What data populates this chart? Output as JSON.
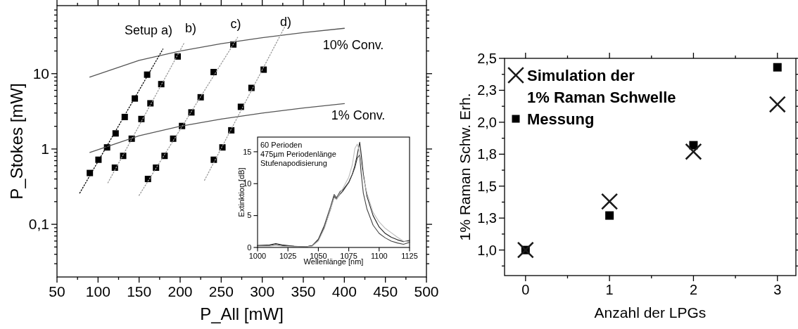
{
  "chart_data": [
    {
      "type": "scatter",
      "xlabel": "P_All [mW]",
      "ylabel": "P_Stokes [mW]",
      "log": true,
      "xlim": [
        50,
        500
      ],
      "ylim": [
        0.02,
        80
      ],
      "xticks": [
        50,
        100,
        150,
        200,
        250,
        300,
        350,
        400,
        450,
        500,
        {
          "value": 75,
          "label": null
        },
        {
          "value": 125,
          "label": null
        },
        {
          "value": 175,
          "label": null
        },
        {
          "value": 225,
          "label": null
        },
        {
          "value": 275,
          "label": null
        },
        {
          "value": 325,
          "label": null
        },
        {
          "value": 375,
          "label": null
        },
        {
          "value": 425,
          "label": null
        },
        {
          "value": 475,
          "label": null
        }
      ],
      "yticks": [
        {
          "value": 0.1,
          "label": "0,1"
        },
        1,
        10,
        {
          "value": 0.03,
          "label": null
        },
        {
          "value": 0.04,
          "label": null
        },
        {
          "value": 0.05,
          "label": null
        },
        {
          "value": 0.06,
          "label": null
        },
        {
          "value": 0.07,
          "label": null
        },
        {
          "value": 0.08,
          "label": null
        },
        {
          "value": 0.09,
          "label": null
        },
        {
          "value": 0.2,
          "label": null
        },
        {
          "value": 0.3,
          "label": null
        },
        {
          "value": 0.4,
          "label": null
        },
        {
          "value": 0.5,
          "label": null
        },
        {
          "value": 0.6,
          "label": null
        },
        {
          "value": 0.7,
          "label": null
        },
        {
          "value": 0.8,
          "label": null
        },
        {
          "value": 0.9,
          "label": null
        },
        {
          "value": 2,
          "label": null
        },
        {
          "value": 3,
          "label": null
        },
        {
          "value": 4,
          "label": null
        },
        {
          "value": 5,
          "label": null
        },
        {
          "value": 6,
          "label": null
        },
        {
          "value": 7,
          "label": null
        },
        {
          "value": 8,
          "label": null
        },
        {
          "value": 9,
          "label": null
        },
        {
          "value": 20,
          "label": null
        },
        {
          "value": 30,
          "label": null
        },
        {
          "value": 40,
          "label": null
        },
        {
          "value": 50,
          "label": null
        },
        {
          "value": 60,
          "label": null
        },
        {
          "value": 70,
          "label": null
        }
      ],
      "marker": "square",
      "series": [
        {
          "type": "line",
          "line_style": "dotted",
          "marker": "none",
          "color": "#000000",
          "x": [
            77.7,
            179
          ],
          "values": [
            0.26,
            21.2
          ]
        },
        {
          "type": "line",
          "line_style": "dotted",
          "marker": "none",
          "color": "#999999",
          "x": [
            112,
            205
          ],
          "values": [
            0.356,
            25.7
          ]
        },
        {
          "type": "line",
          "line_style": "dotted",
          "marker": "none",
          "color": "#999999",
          "x": [
            150,
            270
          ],
          "values": [
            0.242,
            30.3
          ]
        },
        {
          "type": "line",
          "line_style": "dotted",
          "marker": "none",
          "color": "#999999",
          "x": [
            229.7,
            329
          ],
          "values": [
            0.385,
            45.2
          ]
        },
        {
          "type": "line",
          "line_style": "solid",
          "marker": "none",
          "color": "#555555",
          "x": [
            90,
            150,
            200,
            250,
            300,
            350,
            400
          ],
          "values": [
            9,
            15,
            20,
            25,
            30,
            35,
            40
          ]
        },
        {
          "type": "line",
          "line_style": "solid",
          "marker": "none",
          "color": "#555555",
          "x": [
            90,
            150,
            200,
            250,
            300,
            350,
            400
          ],
          "values": [
            0.9,
            1.5,
            2,
            2.5,
            3,
            3.5,
            4
          ]
        },
        {
          "color": "#000000",
          "x": [
            90,
            100.5,
            111,
            121.4,
            132.5,
            144.8,
            159.8
          ],
          "values": [
            0.48,
            0.72,
            1.05,
            1.61,
            2.66,
            4.68,
            9.7
          ]
        },
        {
          "color": "#000000",
          "x": [
            120.5,
            130.6,
            141,
            152.8,
            163.8,
            177,
            197
          ],
          "values": [
            0.565,
            0.81,
            1.37,
            2.5,
            4.04,
            7.26,
            16.9
          ]
        },
        {
          "color": "#000000",
          "x": [
            160.8,
            170.6,
            181,
            191.5,
            202.3,
            213.7,
            225,
            240.8,
            264.8
          ],
          "values": [
            0.4,
            0.565,
            0.81,
            1.37,
            2.02,
            3.06,
            4.86,
            10.5,
            24.4
          ]
        },
        {
          "color": "#000000",
          "x": [
            241,
            251.5,
            262.3,
            274,
            286.9,
            301.7
          ],
          "values": [
            0.72,
            1.05,
            1.77,
            3.63,
            6.47,
            11.3
          ]
        }
      ],
      "annotations": [
        "Setup a)",
        "b)",
        "c)",
        "d)",
        "10% Conv.",
        "1% Conv."
      ]
    },
    {
      "type": "line",
      "xlabel": "Wellenlänge [nm]",
      "ylabel": "Extinktion [dB]",
      "xlim": [
        1000,
        1125
      ],
      "ylim": [
        0,
        17.3
      ],
      "xticks": [
        1000,
        1025,
        1050,
        1075,
        1100,
        1125
      ],
      "yticks": [
        0,
        5,
        10,
        15
      ],
      "x": [
        1000,
        1010,
        1015,
        1020,
        1030,
        1040,
        1045,
        1050,
        1055,
        1060,
        1063,
        1065,
        1068,
        1070,
        1075,
        1078,
        1080,
        1082,
        1084,
        1085,
        1087,
        1090,
        1095,
        1100,
        1105,
        1110,
        1115,
        1120,
        1125
      ],
      "series": [
        {
          "color": "#bbbbbb",
          "values": [
            0.2,
            0.2,
            0.3,
            0.2,
            0.1,
            0.1,
            0.2,
            1,
            3,
            6,
            7.8,
            7.5,
            8.6,
            9.2,
            11,
            13,
            15.5,
            16.2,
            15,
            13.5,
            11,
            8.5,
            5.5,
            4,
            3,
            2.3,
            1.6,
            1,
            0.9
          ]
        },
        {
          "color": "#444444",
          "values": [
            0.3,
            0.3,
            0.5,
            0.3,
            0.2,
            0.1,
            0.3,
            1.3,
            3.5,
            6.4,
            8.3,
            7.8,
            8.8,
            9,
            10.2,
            11.5,
            12.5,
            14,
            14.5,
            12,
            8.5,
            6,
            3.5,
            2.2,
            1.5,
            1,
            0.7,
            0.5,
            0.8
          ]
        },
        {
          "color": "#222222",
          "values": [
            0.3,
            0.4,
            0.6,
            0.4,
            0.2,
            0.1,
            0.3,
            1.2,
            3.2,
            6,
            8,
            7.6,
            8.4,
            8.8,
            10.2,
            11.5,
            12.8,
            14.5,
            16.5,
            15,
            11.5,
            8,
            5,
            3.2,
            2.2,
            1.6,
            1.2,
            0.9,
            1.1
          ]
        }
      ],
      "annotations": [
        "60 Perioden",
        "475µm Periodenlänge",
        "Stufenapodisierung"
      ]
    },
    {
      "type": "scatter",
      "xlabel": "Anzahl der LPGs",
      "ylabel": "1% Raman Schw. Erh.",
      "xlim": [
        -0.25,
        3.22
      ],
      "ylim": [
        0.8,
        2.5
      ],
      "xticks": [
        0,
        1,
        2,
        3,
        {
          "value": 0.5,
          "label": null
        },
        {
          "value": 1.5,
          "label": null
        },
        {
          "value": 2.5,
          "label": null
        }
      ],
      "yticks": [
        {
          "value": 1,
          "label": "1,0"
        },
        {
          "value": 1.25,
          "label": "1,3"
        },
        {
          "value": 1.5,
          "label": "1,5"
        },
        {
          "value": 1.75,
          "label": "1,8"
        },
        {
          "value": 2,
          "label": "2,0"
        },
        {
          "value": 2.25,
          "label": "2,3"
        },
        {
          "value": 2.5,
          "label": "2,5"
        },
        {
          "value": 0.875,
          "label": null
        },
        {
          "value": 1.125,
          "label": null
        },
        {
          "value": 1.375,
          "label": null
        },
        {
          "value": 1.625,
          "label": null
        },
        {
          "value": 1.875,
          "label": null
        },
        {
          "value": 2.125,
          "label": null
        },
        {
          "value": 2.375,
          "label": null
        }
      ],
      "x": [
        0,
        1,
        2,
        3
      ],
      "legend": "top left",
      "series": [
        {
          "name": "Simulation der 1% Raman Schwelle",
          "marker": "cross",
          "color": "#1a1a1a",
          "values": [
            1,
            1.38,
            1.77,
            2.14
          ]
        },
        {
          "name": "Messung",
          "marker": "square",
          "color": "#000000",
          "values": [
            1,
            1.27,
            1.82,
            2.43
          ]
        }
      ]
    }
  ]
}
